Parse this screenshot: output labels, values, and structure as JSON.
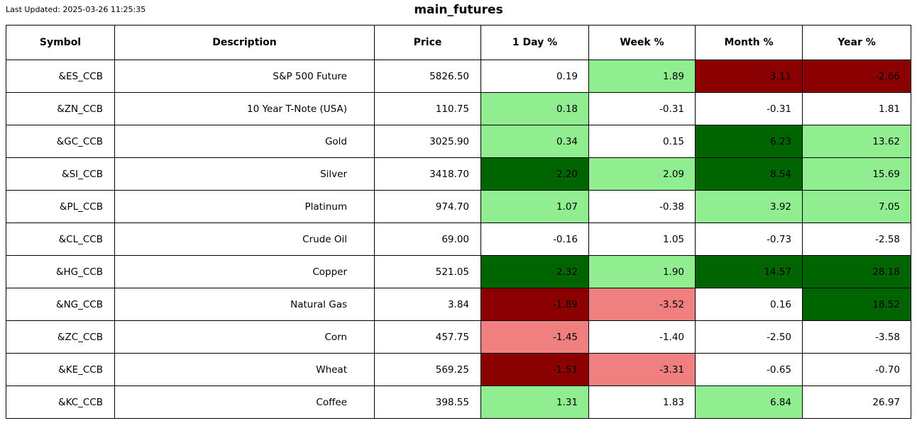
{
  "header": {
    "last_updated": "Last Updated: 2025-03-26 11:25:35",
    "title": "main_futures"
  },
  "colors": {
    "white": "#FFFFFF",
    "light_green": "#90EE90",
    "dark_green": "#006400",
    "light_red": "#F08080",
    "dark_red": "#8B0000",
    "border": "#000000"
  },
  "chart_data": {
    "type": "table",
    "columns": [
      "Symbol",
      "Description",
      "Price",
      "1 Day %",
      "Week %",
      "Month %",
      "Year %"
    ],
    "change_columns": [
      "1 Day %",
      "Week %",
      "Month %",
      "Year %"
    ],
    "rows": [
      {
        "symbol": "&ES_CCB",
        "description": "S&P 500 Future",
        "price": "5826.50",
        "changes": [
          {
            "value": "0.19",
            "color": "white"
          },
          {
            "value": "1.89",
            "color": "light_green"
          },
          {
            "value": "-3.11",
            "color": "dark_red"
          },
          {
            "value": "-2.66",
            "color": "dark_red"
          }
        ]
      },
      {
        "symbol": "&ZN_CCB",
        "description": "10 Year T-Note (USA)",
        "price": "110.75",
        "changes": [
          {
            "value": "0.18",
            "color": "light_green"
          },
          {
            "value": "-0.31",
            "color": "white"
          },
          {
            "value": "-0.31",
            "color": "white"
          },
          {
            "value": "1.81",
            "color": "white"
          }
        ]
      },
      {
        "symbol": "&GC_CCB",
        "description": "Gold",
        "price": "3025.90",
        "changes": [
          {
            "value": "0.34",
            "color": "light_green"
          },
          {
            "value": "0.15",
            "color": "white"
          },
          {
            "value": "6.23",
            "color": "dark_green"
          },
          {
            "value": "13.62",
            "color": "light_green"
          }
        ]
      },
      {
        "symbol": "&SI_CCB",
        "description": "Silver",
        "price": "3418.70",
        "changes": [
          {
            "value": "2.20",
            "color": "dark_green"
          },
          {
            "value": "2.09",
            "color": "light_green"
          },
          {
            "value": "8.54",
            "color": "dark_green"
          },
          {
            "value": "15.69",
            "color": "light_green"
          }
        ]
      },
      {
        "symbol": "&PL_CCB",
        "description": "Platinum",
        "price": "974.70",
        "changes": [
          {
            "value": "1.07",
            "color": "light_green"
          },
          {
            "value": "-0.38",
            "color": "white"
          },
          {
            "value": "3.92",
            "color": "light_green"
          },
          {
            "value": "7.05",
            "color": "light_green"
          }
        ]
      },
      {
        "symbol": "&CL_CCB",
        "description": "Crude Oil",
        "price": "69.00",
        "changes": [
          {
            "value": "-0.16",
            "color": "white"
          },
          {
            "value": "1.05",
            "color": "white"
          },
          {
            "value": "-0.73",
            "color": "white"
          },
          {
            "value": "-2.58",
            "color": "white"
          }
        ]
      },
      {
        "symbol": "&HG_CCB",
        "description": "Copper",
        "price": "521.05",
        "changes": [
          {
            "value": "2.32",
            "color": "dark_green"
          },
          {
            "value": "1.90",
            "color": "light_green"
          },
          {
            "value": "14.57",
            "color": "dark_green"
          },
          {
            "value": "28.18",
            "color": "dark_green"
          }
        ]
      },
      {
        "symbol": "&NG_CCB",
        "description": "Natural Gas",
        "price": "3.84",
        "changes": [
          {
            "value": "-1.89",
            "color": "dark_red"
          },
          {
            "value": "-3.52",
            "color": "light_red"
          },
          {
            "value": "0.16",
            "color": "white"
          },
          {
            "value": "18.52",
            "color": "dark_green"
          }
        ]
      },
      {
        "symbol": "&ZC_CCB",
        "description": "Corn",
        "price": "457.75",
        "changes": [
          {
            "value": "-1.45",
            "color": "light_red"
          },
          {
            "value": "-1.40",
            "color": "white"
          },
          {
            "value": "-2.50",
            "color": "white"
          },
          {
            "value": "-3.58",
            "color": "white"
          }
        ]
      },
      {
        "symbol": "&KE_CCB",
        "description": "Wheat",
        "price": "569.25",
        "changes": [
          {
            "value": "-1.51",
            "color": "dark_red"
          },
          {
            "value": "-3.31",
            "color": "light_red"
          },
          {
            "value": "-0.65",
            "color": "white"
          },
          {
            "value": "-0.70",
            "color": "white"
          }
        ]
      },
      {
        "symbol": "&KC_CCB",
        "description": "Coffee",
        "price": "398.55",
        "changes": [
          {
            "value": "1.31",
            "color": "light_green"
          },
          {
            "value": "1.83",
            "color": "white"
          },
          {
            "value": "6.84",
            "color": "light_green"
          },
          {
            "value": "26.97",
            "color": "white"
          }
        ]
      }
    ]
  }
}
